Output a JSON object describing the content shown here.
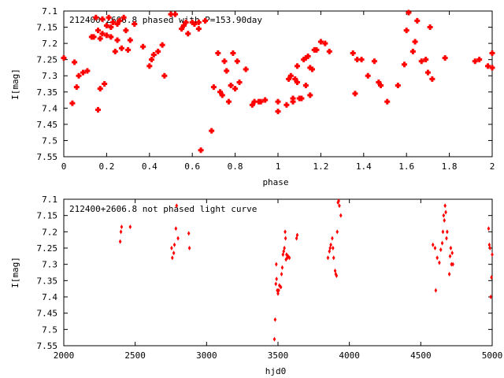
{
  "chart_data": [
    {
      "type": "scatter",
      "title": "212400+2606.8 phased with P=153.90day",
      "xlabel": "phase",
      "ylabel": "I[mag]",
      "xlim": [
        0,
        2
      ],
      "ylim": [
        7.1,
        7.55
      ],
      "y_inverted": true,
      "grid": false,
      "legend": "none",
      "x_ticks": [
        "0",
        "0.2",
        "0.4",
        "0.6",
        "0.8",
        "1",
        "1.2",
        "1.4",
        "1.6",
        "1.8",
        "2"
      ],
      "y_ticks": [
        "7.1",
        "7.15",
        "7.2",
        "7.25",
        "7.3",
        "7.35",
        "7.4",
        "7.45",
        "7.5",
        "7.55"
      ],
      "color": "#ff0000",
      "series": [
        {
          "x": [
            0.0,
            0.04,
            0.05,
            0.06,
            0.07,
            0.09,
            0.11,
            0.13,
            0.14,
            0.15,
            0.16,
            0.16,
            0.17,
            0.17,
            0.18,
            0.18,
            0.19,
            0.2,
            0.2,
            0.21,
            0.22,
            0.22,
            0.23,
            0.24,
            0.25,
            0.25,
            0.26,
            0.27,
            0.28,
            0.29,
            0.3,
            0.31,
            0.33,
            0.37,
            0.4,
            0.41,
            0.42,
            0.44,
            0.46,
            0.47,
            0.5,
            0.52,
            0.55,
            0.56,
            0.57,
            0.58,
            0.6,
            0.61,
            0.63,
            0.63,
            0.64,
            0.66,
            0.69,
            0.7,
            0.72,
            0.73,
            0.74,
            0.75,
            0.76,
            0.77,
            0.78,
            0.79,
            0.8,
            0.81,
            0.82,
            0.85,
            0.88,
            0.89,
            0.91,
            0.92,
            0.94,
            1.0,
            1.0,
            1.04,
            1.05,
            1.06,
            1.07,
            1.07,
            1.08,
            1.09,
            1.09,
            1.1,
            1.11,
            1.12,
            1.13,
            1.13,
            1.14,
            1.15,
            1.15,
            1.16,
            1.17,
            1.18,
            1.2,
            1.22,
            1.24,
            1.35,
            1.36,
            1.37,
            1.39,
            1.42,
            1.45,
            1.47,
            1.48,
            1.51,
            1.56,
            1.59,
            1.6,
            1.61,
            1.63,
            1.64,
            1.65,
            1.67,
            1.69,
            1.7,
            1.71,
            1.72,
            1.78,
            1.92,
            1.94,
            1.98,
            2.0,
            2.0
          ],
          "y": [
            7.245,
            7.385,
            7.258,
            7.335,
            7.3,
            7.29,
            7.285,
            7.18,
            7.18,
            7.12,
            7.405,
            7.16,
            7.34,
            7.185,
            7.17,
            7.125,
            7.325,
            7.145,
            7.175,
            7.12,
            7.18,
            7.15,
            7.135,
            7.225,
            7.19,
            7.14,
            7.13,
            7.215,
            7.12,
            7.16,
            7.22,
            7.19,
            7.14,
            7.21,
            7.27,
            7.25,
            7.235,
            7.225,
            7.205,
            7.3,
            7.11,
            7.11,
            7.155,
            7.145,
            7.135,
            7.17,
            7.135,
            7.14,
            7.155,
            7.135,
            7.53,
            7.13,
            7.47,
            7.335,
            7.23,
            7.35,
            7.36,
            7.255,
            7.285,
            7.38,
            7.33,
            7.23,
            7.34,
            7.255,
            7.32,
            7.28,
            7.39,
            7.38,
            7.38,
            7.38,
            7.375,
            7.41,
            7.38,
            7.39,
            7.31,
            7.3,
            7.38,
            7.37,
            7.31,
            7.27,
            7.32,
            7.37,
            7.37,
            7.25,
            7.245,
            7.33,
            7.24,
            7.275,
            7.36,
            7.28,
            7.22,
            7.22,
            7.195,
            7.2,
            7.225,
            7.23,
            7.355,
            7.25,
            7.25,
            7.3,
            7.255,
            7.32,
            7.33,
            7.38,
            7.33,
            7.265,
            7.16,
            7.105,
            7.225,
            7.195,
            7.13,
            7.255,
            7.25,
            7.29,
            7.15,
            7.31,
            7.245,
            7.255,
            7.25,
            7.27,
            7.275,
            7.23
          ]
        }
      ]
    },
    {
      "type": "scatter",
      "title": "212400+2606.8 not phased light curve",
      "xlabel": "hjd0",
      "ylabel": "I[mag]",
      "xlim": [
        2000,
        5000
      ],
      "ylim": [
        7.1,
        7.55
      ],
      "y_inverted": true,
      "grid": false,
      "legend": "none",
      "x_ticks": [
        "2000",
        "2500",
        "3000",
        "3500",
        "4000",
        "4500",
        "5000"
      ],
      "y_ticks": [
        "7.1",
        "7.15",
        "7.2",
        "7.25",
        "7.3",
        "7.35",
        "7.4",
        "7.45",
        "7.5",
        "7.55"
      ],
      "color": "#ff0000",
      "series": [
        {
          "x": [
            2395,
            2400,
            2405,
            2465,
            2755,
            2760,
            2770,
            2775,
            2785,
            2790,
            2800,
            2875,
            2880,
            3475,
            3480,
            3485,
            3488,
            3490,
            3495,
            3500,
            3505,
            3510,
            3520,
            3525,
            3530,
            3535,
            3540,
            3545,
            3550,
            3553,
            3556,
            3560,
            3565,
            3570,
            3580,
            3630,
            3635,
            3850,
            3860,
            3865,
            3870,
            3880,
            3885,
            3890,
            3900,
            3905,
            3910,
            3915,
            3920,
            3925,
            3930,
            3940,
            4585,
            4600,
            4605,
            4615,
            4630,
            4640,
            4650,
            4655,
            4660,
            4665,
            4670,
            4675,
            4680,
            4685,
            4700,
            4705,
            4710,
            4715,
            4720,
            4725,
            4975,
            4980,
            4985,
            4990,
            4995,
            5000
          ],
          "y": [
            7.23,
            7.2,
            7.185,
            7.185,
            7.25,
            7.28,
            7.265,
            7.24,
            7.19,
            7.12,
            7.22,
            7.205,
            7.25,
            7.53,
            7.47,
            7.36,
            7.3,
            7.345,
            7.38,
            7.39,
            7.38,
            7.365,
            7.37,
            7.33,
            7.31,
            7.27,
            7.26,
            7.25,
            7.2,
            7.22,
            7.285,
            7.27,
            7.28,
            7.275,
            7.28,
            7.22,
            7.21,
            7.28,
            7.26,
            7.25,
            7.24,
            7.22,
            7.25,
            7.28,
            7.32,
            7.33,
            7.335,
            7.2,
            7.11,
            7.105,
            7.12,
            7.15,
            7.24,
            7.25,
            7.38,
            7.28,
            7.295,
            7.255,
            7.235,
            7.2,
            7.15,
            7.165,
            7.12,
            7.14,
            7.22,
            7.2,
            7.33,
            7.275,
            7.25,
            7.3,
            7.265,
            7.3,
            7.19,
            7.24,
            7.25,
            7.4,
            7.34,
            7.27
          ]
        }
      ]
    }
  ]
}
